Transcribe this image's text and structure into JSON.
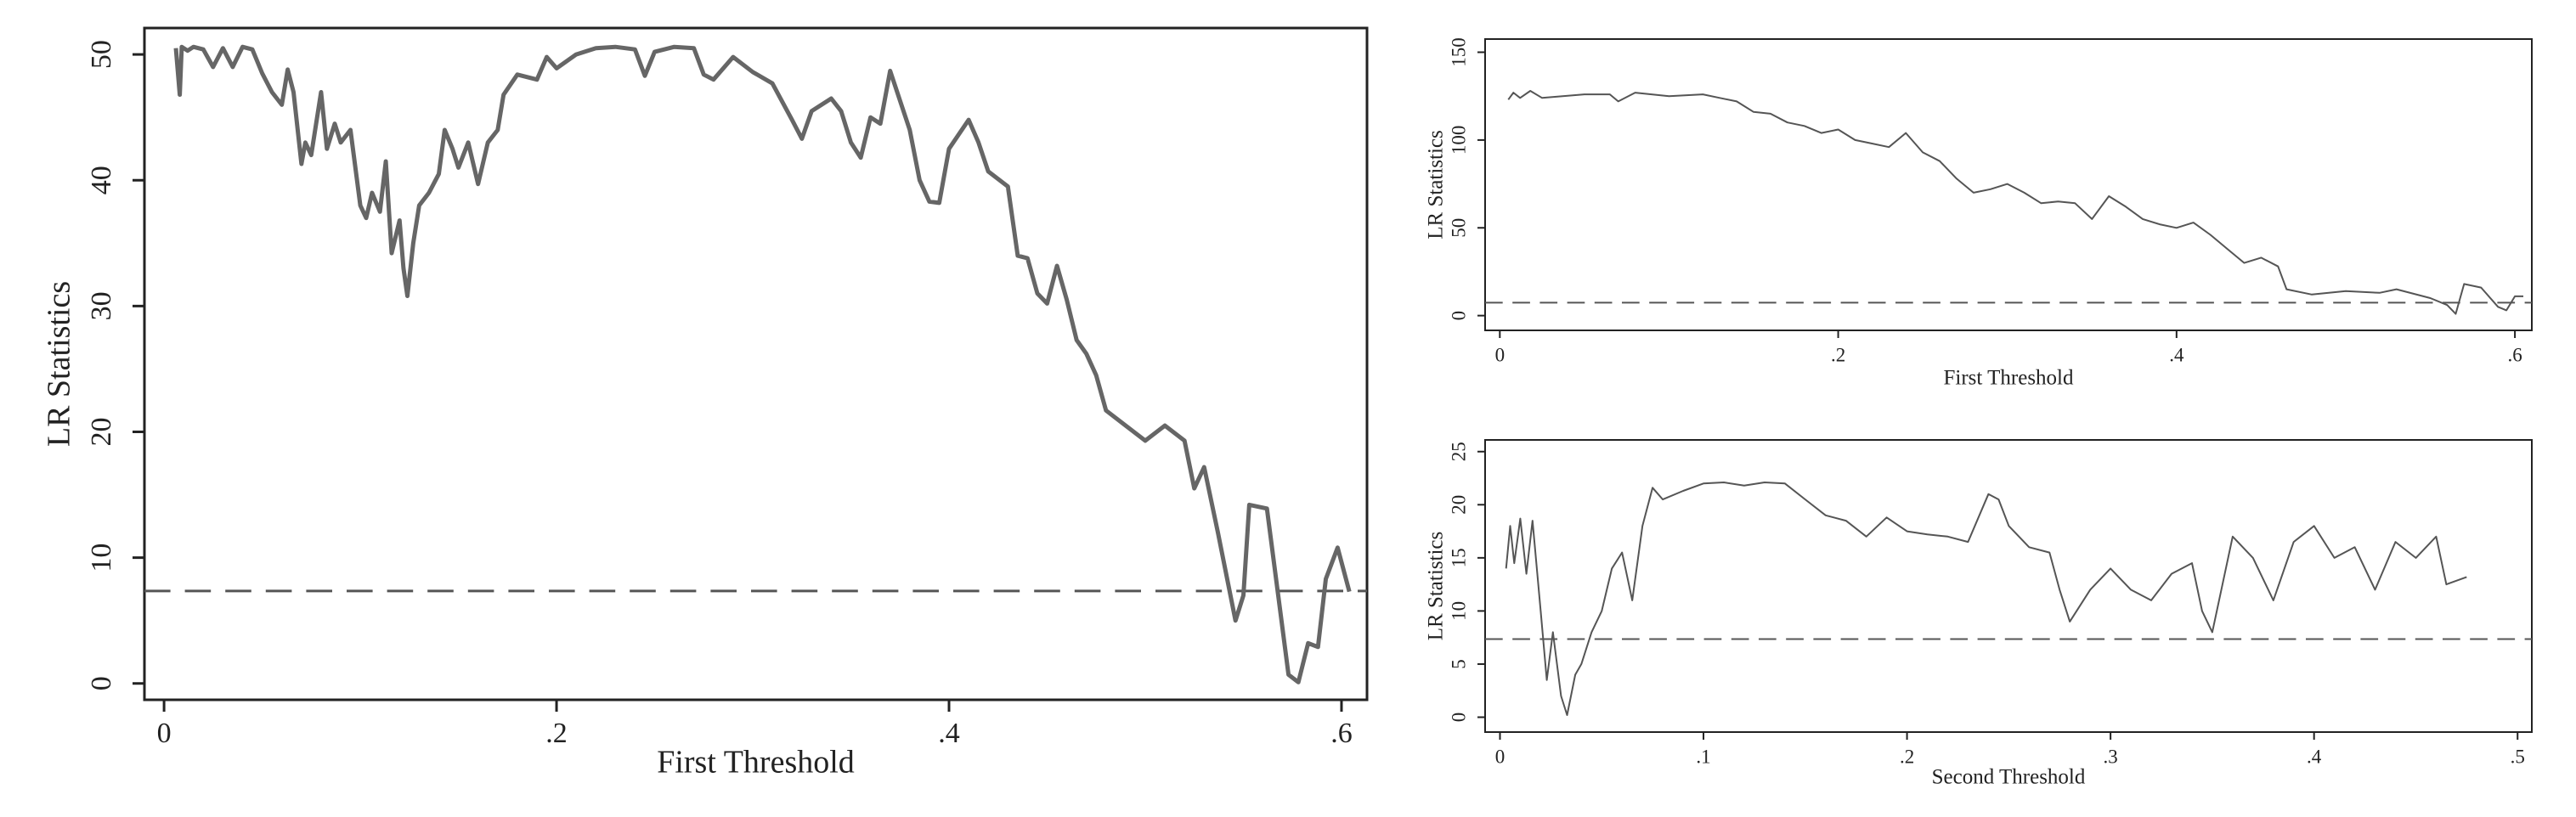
{
  "chart_data": [
    {
      "type": "line",
      "x_label": "First Threshold",
      "y_label": "LR Statistics",
      "color": "#666666",
      "line_width": 5,
      "reference_line": 7.35,
      "reference_style": "dashed",
      "xlim": [
        -0.01,
        0.613
      ],
      "ylim": [
        -1.3,
        52.1
      ],
      "xticks": [
        0,
        {
          "value": 0.2,
          "label": ".2"
        },
        {
          "value": 0.4,
          "label": ".4"
        },
        {
          "value": 0.6,
          "label": ".6"
        }
      ],
      "yticks": [
        0,
        10,
        20,
        30,
        40,
        50
      ],
      "x": [
        0.006,
        0.008,
        0.009,
        0.012,
        0.015,
        0.02,
        0.025,
        0.03,
        0.035,
        0.04,
        0.045,
        0.05,
        0.055,
        0.06,
        0.063,
        0.066,
        0.07,
        0.072,
        0.075,
        0.08,
        0.083,
        0.087,
        0.09,
        0.095,
        0.1,
        0.103,
        0.106,
        0.11,
        0.113,
        0.116,
        0.12,
        0.122,
        0.124,
        0.127,
        0.13,
        0.135,
        0.14,
        0.143,
        0.147,
        0.15,
        0.155,
        0.16,
        0.165,
        0.17,
        0.173,
        0.18,
        0.19,
        0.195,
        0.2,
        0.21,
        0.22,
        0.23,
        0.24,
        0.245,
        0.25,
        0.26,
        0.27,
        0.275,
        0.28,
        0.29,
        0.3,
        0.31,
        0.32,
        0.325,
        0.33,
        0.34,
        0.345,
        0.35,
        0.355,
        0.36,
        0.365,
        0.37,
        0.38,
        0.385,
        0.39,
        0.395,
        0.4,
        0.41,
        0.415,
        0.42,
        0.43,
        0.435,
        0.44,
        0.445,
        0.45,
        0.455,
        0.46,
        0.465,
        0.47,
        0.475,
        0.48,
        0.49,
        0.5,
        0.51,
        0.52,
        0.525,
        0.53,
        0.537,
        0.546,
        0.55,
        0.553,
        0.562,
        0.573,
        0.578,
        0.583,
        0.588,
        0.592,
        0.598,
        0.604
      ],
      "values": [
        50.5,
        46.8,
        50.6,
        50.3,
        50.6,
        50.4,
        49,
        50.5,
        49,
        50.6,
        50.4,
        48.5,
        47,
        46,
        48.8,
        47,
        41.3,
        43,
        42,
        47,
        42.5,
        44.5,
        43,
        44,
        38,
        37,
        39,
        37.5,
        41.5,
        34.2,
        36.8,
        33,
        30.8,
        35,
        38,
        39,
        40.5,
        44,
        42.5,
        41,
        43,
        39.7,
        43,
        44,
        46.8,
        48.4,
        48,
        49.8,
        48.9,
        50,
        50.5,
        50.6,
        50.4,
        48.3,
        50.2,
        50.6,
        50.5,
        48.4,
        48,
        49.8,
        48.6,
        47.7,
        44.8,
        43.3,
        45.5,
        46.5,
        45.5,
        43,
        41.8,
        45,
        44.5,
        48.7,
        44,
        40,
        38.3,
        38.2,
        42.5,
        44.8,
        43,
        40.7,
        39.5,
        34,
        33.8,
        31,
        30.2,
        33.2,
        30.5,
        27.3,
        26.2,
        24.5,
        21.7,
        20.5,
        19.3,
        20.5,
        19.3,
        15.5,
        17.2,
        12,
        5,
        7,
        14.2,
        13.9,
        0.7,
        0.1,
        3.2,
        2.9,
        8.3,
        10.8,
        7.3
      ]
    },
    {
      "type": "line",
      "x_label": "First Threshold",
      "y_label": "LR Statistics",
      "color": "#555555",
      "line_width": 2,
      "reference_line": 7.35,
      "reference_style": "dashed",
      "xlim": [
        -0.0087,
        0.61
      ],
      "ylim": [
        -8.4,
        157.5
      ],
      "xticks": [
        0,
        {
          "value": 0.2,
          "label": ".2"
        },
        {
          "value": 0.4,
          "label": ".4"
        },
        {
          "value": 0.6,
          "label": ".6"
        }
      ],
      "yticks": [
        0,
        50,
        100,
        150
      ],
      "x": [
        0.005,
        0.008,
        0.012,
        0.018,
        0.025,
        0.05,
        0.065,
        0.07,
        0.08,
        0.1,
        0.12,
        0.13,
        0.14,
        0.15,
        0.16,
        0.17,
        0.18,
        0.19,
        0.2,
        0.21,
        0.22,
        0.23,
        0.24,
        0.25,
        0.26,
        0.27,
        0.28,
        0.29,
        0.3,
        0.31,
        0.32,
        0.33,
        0.34,
        0.35,
        0.36,
        0.37,
        0.38,
        0.39,
        0.4,
        0.41,
        0.42,
        0.43,
        0.44,
        0.45,
        0.46,
        0.465,
        0.48,
        0.5,
        0.52,
        0.53,
        0.55,
        0.56,
        0.565,
        0.57,
        0.58,
        0.59,
        0.595,
        0.6,
        0.605
      ],
      "values": [
        123,
        127,
        124,
        128,
        124,
        126,
        126,
        122,
        127,
        125,
        126,
        124,
        122,
        116,
        115,
        110,
        108,
        104,
        106,
        100,
        98,
        96,
        104,
        93,
        88,
        78,
        70,
        72,
        75,
        70,
        64,
        65,
        64,
        55,
        68,
        62,
        55,
        52,
        50,
        53,
        46,
        38,
        30,
        33,
        28,
        15,
        12,
        14,
        13,
        15,
        10,
        6,
        1,
        18,
        16,
        5,
        3,
        11,
        11
      ]
    },
    {
      "type": "line",
      "x_label": "Second Threshold",
      "y_label": "LR Statistics",
      "color": "#555555",
      "line_width": 2,
      "reference_line": 7.35,
      "reference_style": "dashed",
      "xlim": [
        -0.0073,
        0.507
      ],
      "ylim": [
        -1.4,
        26.1
      ],
      "xticks": [
        0,
        {
          "value": 0.1,
          "label": ".1"
        },
        {
          "value": 0.2,
          "label": ".2"
        },
        {
          "value": 0.3,
          "label": ".3"
        },
        {
          "value": 0.4,
          "label": ".4"
        },
        {
          "value": 0.5,
          "label": ".5"
        }
      ],
      "yticks": [
        0,
        5,
        10,
        15,
        20,
        25
      ],
      "x": [
        0.003,
        0.005,
        0.007,
        0.01,
        0.013,
        0.016,
        0.02,
        0.023,
        0.026,
        0.03,
        0.033,
        0.037,
        0.04,
        0.045,
        0.05,
        0.055,
        0.06,
        0.065,
        0.07,
        0.075,
        0.08,
        0.09,
        0.1,
        0.11,
        0.12,
        0.13,
        0.14,
        0.15,
        0.16,
        0.17,
        0.18,
        0.19,
        0.2,
        0.21,
        0.22,
        0.23,
        0.24,
        0.245,
        0.25,
        0.26,
        0.27,
        0.275,
        0.28,
        0.29,
        0.3,
        0.31,
        0.32,
        0.33,
        0.34,
        0.345,
        0.35,
        0.36,
        0.37,
        0.38,
        0.39,
        0.4,
        0.41,
        0.42,
        0.43,
        0.44,
        0.45,
        0.46,
        0.465,
        0.475
      ],
      "values": [
        14,
        18,
        14.5,
        18.7,
        13.5,
        18.5,
        10,
        3.5,
        8,
        2,
        0.2,
        4,
        5,
        8,
        10,
        14,
        15.5,
        11,
        18,
        21.6,
        20.5,
        21.3,
        22,
        22.1,
        21.8,
        22.1,
        22,
        20.5,
        19,
        18.5,
        17,
        18.8,
        17.5,
        17.2,
        17,
        16.5,
        21,
        20.5,
        18,
        16,
        15.5,
        12,
        9,
        12,
        14,
        12,
        11,
        13.5,
        14.5,
        10,
        8,
        17,
        15,
        11,
        16.5,
        18,
        15,
        16,
        12,
        16.5,
        15,
        17,
        12.5,
        13.2
      ]
    }
  ]
}
